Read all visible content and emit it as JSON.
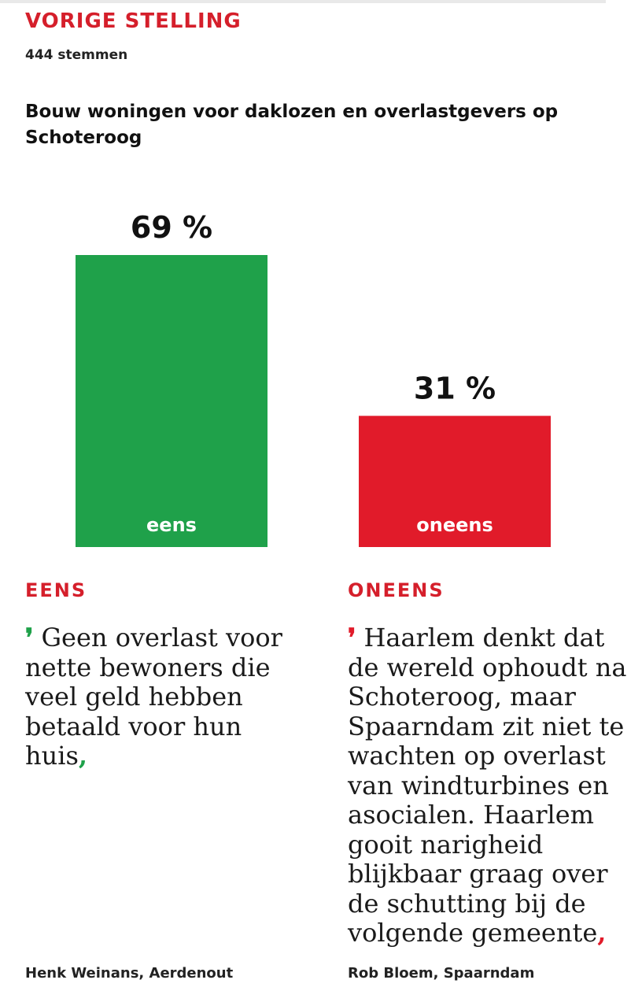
{
  "header": {
    "kicker": "VORIGE STELLING",
    "votes": "444 stemmen",
    "question": "Bouw woningen voor daklozen en overlastgevers op Schoteroog"
  },
  "chart_data": {
    "type": "bar",
    "categories": [
      "eens",
      "oneens"
    ],
    "values": [
      69,
      31
    ],
    "value_labels": [
      "69 %",
      "31 %"
    ],
    "colors": [
      "#1fa14a",
      "#e11b2a"
    ],
    "ylim": [
      0,
      69
    ],
    "grid": false
  },
  "columns": [
    {
      "heading": "EENS",
      "open_mark": "❜",
      "quote": "Geen overlast voor nette bewoners die veel geld hebben betaald voor hun huis",
      "close_mark": ",",
      "author": "Henk Weinans, Aerdenout",
      "mark_color": "#1fa14a"
    },
    {
      "heading": "ONEENS",
      "open_mark": "❜",
      "quote": "Haarlem denkt dat de wereld ophoudt na Schoteroog, maar Spaarndam zit niet te wachten op overlast van windturbines en asocialen. Haarlem gooit narigheid blijkbaar graag over de schutting bij de volgende gemeente",
      "close_mark": ",",
      "author": "Rob Bloem, Spaarndam",
      "mark_color": "#e11b2a"
    }
  ],
  "colors": {
    "accent_red": "#d51f2b"
  }
}
